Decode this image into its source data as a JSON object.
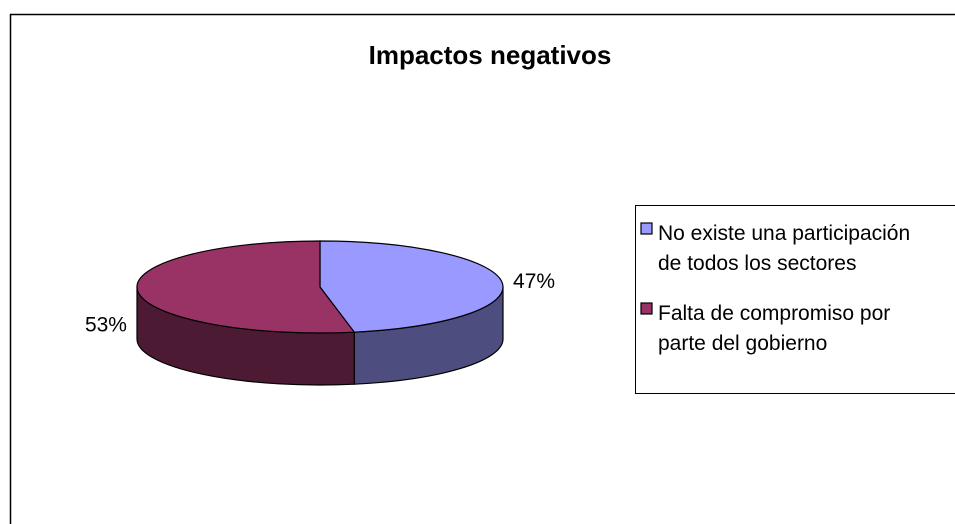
{
  "chart_data": {
    "type": "pie",
    "title": "Impactos negativos",
    "categories": [
      "No existe una participación de todos los sectores",
      "Falta de compromiso por parte del gobierno"
    ],
    "values": [
      47,
      53
    ],
    "value_labels": [
      "47%",
      "53%"
    ],
    "colors": [
      "#9999ff",
      "#993366"
    ],
    "side_colors": [
      "#4d4d80",
      "#4d1a33"
    ],
    "legend": "right"
  }
}
